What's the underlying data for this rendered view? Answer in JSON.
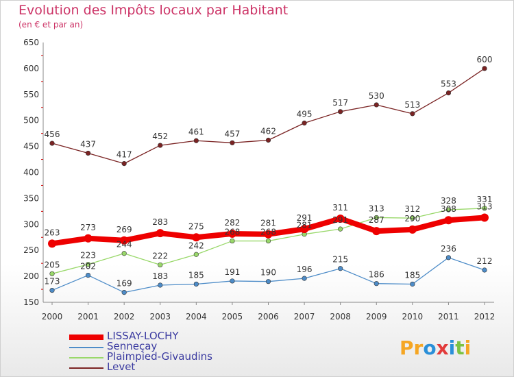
{
  "title": "Evolution des Impôts locaux par Habitant",
  "subtitle": "(en € et par an)",
  "logo": {
    "text": "Proxiti",
    "letters": [
      "P",
      "r",
      "o",
      "x",
      "i",
      "t",
      "i"
    ],
    "colors": [
      "#f5a623",
      "#f5a623",
      "#2a8fd8",
      "#e23b3b",
      "#2a8fd8",
      "#7cc242",
      "#f5a623"
    ]
  },
  "chart_data": {
    "type": "line",
    "title": "Evolution des Impôts locaux par Habitant",
    "subtitle": "(en € et par an)",
    "x": [
      "2000",
      "2001",
      "2002",
      "2003",
      "2004",
      "2005",
      "2006",
      "2007",
      "2008",
      "2009",
      "2010",
      "2011",
      "2012"
    ],
    "ylim": [
      150,
      650
    ],
    "yticks": [
      150,
      200,
      250,
      300,
      350,
      400,
      450,
      500,
      550,
      600,
      650
    ],
    "grid": false,
    "legend_position": "bottom-left",
    "series": [
      {
        "name": "LISSAY-LOCHY",
        "color": "#ee0000",
        "values": [
          263,
          273,
          269,
          283,
          275,
          282,
          281,
          291,
          311,
          287,
          290,
          308,
          313
        ]
      },
      {
        "name": "Senneçay",
        "color": "#4d8cc8",
        "values": [
          173,
          202,
          169,
          183,
          185,
          191,
          190,
          196,
          215,
          186,
          185,
          236,
          212
        ]
      },
      {
        "name": "Plaimpied-Givaudins",
        "color": "#99d86a",
        "values": [
          205,
          223,
          244,
          222,
          242,
          268,
          268,
          281,
          291,
          313,
          312,
          328,
          331
        ]
      },
      {
        "name": "Levet",
        "color": "#7a2323",
        "values": [
          456,
          437,
          417,
          452,
          461,
          457,
          462,
          495,
          517,
          530,
          513,
          553,
          600
        ]
      }
    ]
  }
}
